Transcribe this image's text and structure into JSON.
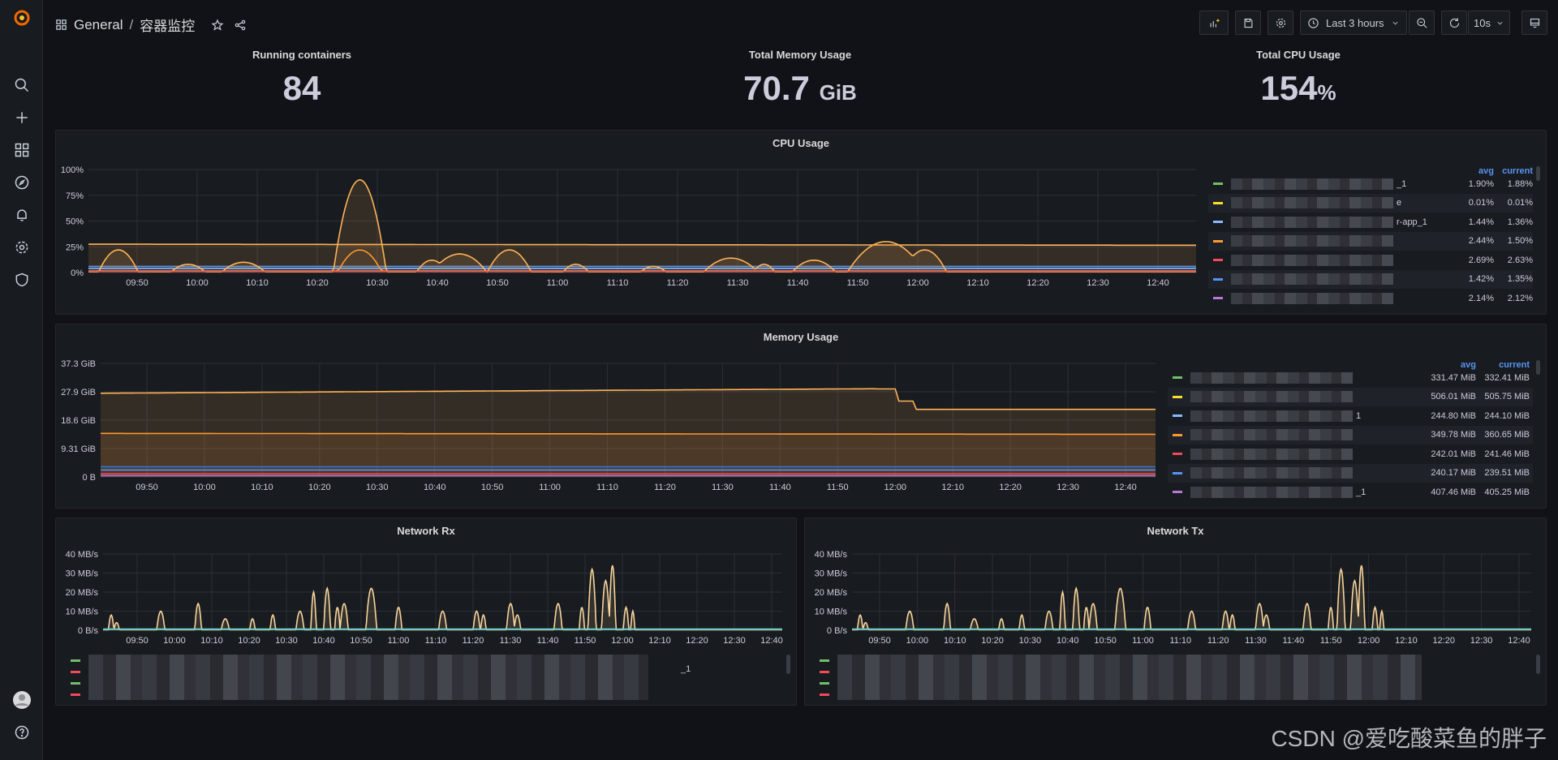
{
  "breadcrumb": {
    "folder": "General",
    "separator": "/",
    "dashboard": "容器监控"
  },
  "toolbar": {
    "time_range": "Last 3 hours",
    "refresh": "10s"
  },
  "stats": [
    {
      "title": "Running containers",
      "value": "84",
      "unit": ""
    },
    {
      "title": "Total Memory Usage",
      "value": "70.7",
      "unit": "GiB"
    },
    {
      "title": "Total CPU Usage",
      "value": "154",
      "unit": "%"
    }
  ],
  "time_ticks": [
    "09:50",
    "10:00",
    "10:10",
    "10:20",
    "10:30",
    "10:40",
    "10:50",
    "11:00",
    "11:10",
    "11:20",
    "11:30",
    "11:40",
    "11:50",
    "12:00",
    "12:10",
    "12:20",
    "12:30",
    "12:40"
  ],
  "cpu_panel": {
    "title": "CPU Usage",
    "yticks": [
      "100%",
      "75%",
      "50%",
      "25%",
      "0%"
    ],
    "legend_headers": {
      "avg": "avg",
      "current": "current"
    },
    "legend": [
      {
        "color": "#73bf69",
        "suffix": "_1",
        "avg": "1.90%",
        "current": "1.88%"
      },
      {
        "color": "#fade2a",
        "suffix": "e",
        "avg": "0.01%",
        "current": "0.01%"
      },
      {
        "color": "#8ab8ff",
        "suffix": "r-app_1",
        "avg": "1.44%",
        "current": "1.36%"
      },
      {
        "color": "#ff9830",
        "suffix": "",
        "avg": "2.44%",
        "current": "1.50%"
      },
      {
        "color": "#f2495c",
        "suffix": "",
        "avg": "2.69%",
        "current": "2.63%"
      },
      {
        "color": "#5794f2",
        "suffix": "",
        "avg": "1.42%",
        "current": "1.35%"
      },
      {
        "color": "#b877d9",
        "suffix": "",
        "avg": "2.14%",
        "current": "2.12%"
      }
    ]
  },
  "mem_panel": {
    "title": "Memory Usage",
    "yticks": [
      "37.3 GiB",
      "27.9 GiB",
      "18.6 GiB",
      "9.31 GiB",
      "0 B"
    ],
    "legend_headers": {
      "avg": "avg",
      "current": "current"
    },
    "legend": [
      {
        "color": "#73bf69",
        "suffix": "",
        "avg": "331.47 MiB",
        "current": "332.41 MiB"
      },
      {
        "color": "#fade2a",
        "suffix": "",
        "avg": "506.01 MiB",
        "current": "505.75 MiB"
      },
      {
        "color": "#8ab8ff",
        "suffix": "1",
        "avg": "244.80 MiB",
        "current": "244.10 MiB"
      },
      {
        "color": "#ff9830",
        "suffix": "",
        "avg": "349.78 MiB",
        "current": "360.65 MiB"
      },
      {
        "color": "#f2495c",
        "suffix": "",
        "avg": "242.01 MiB",
        "current": "241.46 MiB"
      },
      {
        "color": "#5794f2",
        "suffix": "",
        "avg": "240.17 MiB",
        "current": "239.51 MiB"
      },
      {
        "color": "#b877d9",
        "suffix": "_1",
        "avg": "407.46 MiB",
        "current": "405.25 MiB"
      }
    ]
  },
  "rx_panel": {
    "title": "Network Rx",
    "yticks": [
      "40 MB/s",
      "30 MB/s",
      "20 MB/s",
      "10 MB/s",
      "0 B/s"
    ],
    "legend_suffix": "_1"
  },
  "tx_panel": {
    "title": "Network Tx",
    "yticks": [
      "40 MB/s",
      "30 MB/s",
      "20 MB/s",
      "10 MB/s",
      "0 B/s"
    ],
    "legend_suffix": ""
  },
  "icons": [
    "grafana-logo-icon",
    "search-icon",
    "plus-icon",
    "dashboards-icon",
    "explore-icon",
    "alert-bell-icon",
    "gear-icon",
    "shield-icon",
    "avatar-icon",
    "help-icon"
  ],
  "watermark": "CSDN @爱吃酸菜鱼的胖子"
}
